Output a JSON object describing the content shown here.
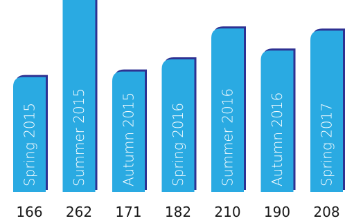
{
  "chart_data": {
    "type": "bar",
    "categories": [
      "Spring 2015",
      "Summer 2015",
      "Autumn 2015",
      "Spring 2016",
      "Summer 2016",
      "Autumn 2016",
      "Spring 2017"
    ],
    "values": [
      166,
      262,
      171,
      182,
      210,
      190,
      208
    ],
    "value_labels": [
      "166",
      "262",
      "171",
      "182",
      "210",
      "190",
      "208"
    ],
    "title": "",
    "xlabel": "",
    "ylabel": "",
    "grid": false,
    "legend": "none",
    "colors": {
      "bar_fill": "#2aaae2",
      "bar_edge": "#2e3192",
      "bar_text": "#ffffff",
      "value_text": "#1a1a1a",
      "background": "#ffffff"
    }
  }
}
